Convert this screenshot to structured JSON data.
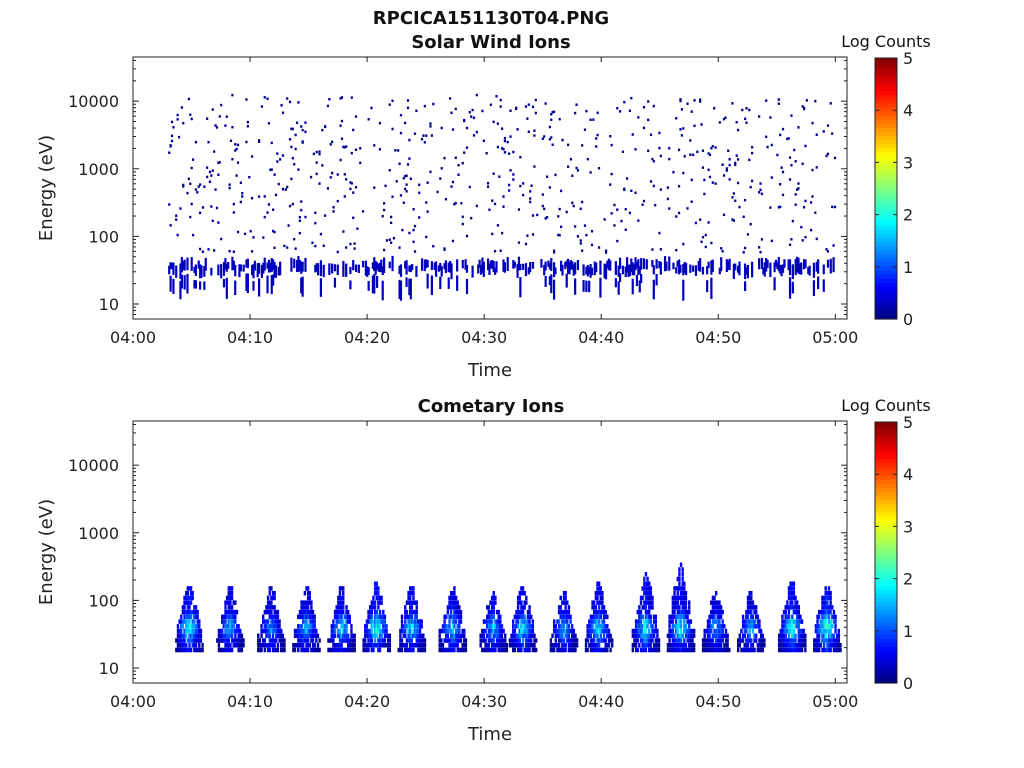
{
  "figure": {
    "filename": "RPCICA151130T04.PNG"
  },
  "colors": {
    "colormap": [
      "#00007f",
      "#0000ff",
      "#007fff",
      "#00ffff",
      "#7fff7f",
      "#ffff00",
      "#ff7f00",
      "#ff0000",
      "#7f0000"
    ],
    "axis": "#222222"
  },
  "chart_data": [
    {
      "type": "heatmap",
      "title": "Solar Wind Ions",
      "xlabel": "Time",
      "ylabel": "Energy (eV)",
      "yscale": "log",
      "ylim": [
        6,
        45000
      ],
      "xlim": [
        "04:00",
        "05:01"
      ],
      "x_ticks": [
        "04:00",
        "04:10",
        "04:20",
        "04:30",
        "04:40",
        "04:50",
        "05:00"
      ],
      "y_ticks": [
        "10",
        "100",
        "1000",
        "10000"
      ],
      "colorbar": {
        "label": "Log Counts",
        "range": [
          0,
          5
        ],
        "ticks": [
          "0",
          "1",
          "2",
          "3",
          "4",
          "5"
        ]
      },
      "observations": [
        {
          "time_start": "04:03",
          "time_end": "05:00",
          "energy_min": 30,
          "energy_max": 40,
          "log_counts": 0.3,
          "note": "intermittent low-energy band"
        },
        {
          "time_start": "04:03",
          "time_end": "05:00",
          "energy_min": 60,
          "energy_max": 13000,
          "log_counts": 0.1,
          "note": "sparse scattered single counts"
        }
      ]
    },
    {
      "type": "heatmap",
      "title": "Cometary Ions",
      "xlabel": "Time",
      "ylabel": "Energy (eV)",
      "yscale": "log",
      "ylim": [
        6,
        45000
      ],
      "xlim": [
        "04:00",
        "05:01"
      ],
      "x_ticks": [
        "04:00",
        "04:10",
        "04:20",
        "04:30",
        "04:40",
        "04:50",
        "05:00"
      ],
      "y_ticks": [
        "10",
        "100",
        "1000",
        "10000"
      ],
      "colorbar": {
        "label": "Log Counts",
        "range": [
          0,
          5
        ],
        "ticks": [
          "0",
          "1",
          "2",
          "3",
          "4",
          "5"
        ]
      },
      "bursts": [
        {
          "time": "04:04.5",
          "energy_max": 180,
          "peak_log_counts": 2.0
        },
        {
          "time": "04:08.0",
          "energy_max": 150,
          "peak_log_counts": 1.6
        },
        {
          "time": "04:11.5",
          "energy_max": 150,
          "peak_log_counts": 1.4
        },
        {
          "time": "04:14.5",
          "energy_max": 160,
          "peak_log_counts": 1.6
        },
        {
          "time": "04:17.5",
          "energy_max": 160,
          "peak_log_counts": 1.8
        },
        {
          "time": "04:20.5",
          "energy_max": 180,
          "peak_log_counts": 2.1
        },
        {
          "time": "04:23.5",
          "energy_max": 170,
          "peak_log_counts": 1.8
        },
        {
          "time": "04:27.0",
          "energy_max": 170,
          "peak_log_counts": 1.8
        },
        {
          "time": "04:30.5",
          "energy_max": 140,
          "peak_log_counts": 1.6
        },
        {
          "time": "04:33.0",
          "energy_max": 170,
          "peak_log_counts": 1.8
        },
        {
          "time": "04:36.5",
          "energy_max": 140,
          "peak_log_counts": 1.6
        },
        {
          "time": "04:39.5",
          "energy_max": 190,
          "peak_log_counts": 1.8
        },
        {
          "time": "04:43.5",
          "energy_max": 250,
          "peak_log_counts": 2.0
        },
        {
          "time": "04:46.5",
          "energy_max": 350,
          "peak_log_counts": 2.0
        },
        {
          "time": "04:49.5",
          "energy_max": 140,
          "peak_log_counts": 1.5
        },
        {
          "time": "04:52.5",
          "energy_max": 130,
          "peak_log_counts": 1.5
        },
        {
          "time": "04:56.0",
          "energy_max": 200,
          "peak_log_counts": 2.0
        },
        {
          "time": "04:59.0",
          "energy_max": 170,
          "peak_log_counts": 2.2
        }
      ]
    }
  ]
}
